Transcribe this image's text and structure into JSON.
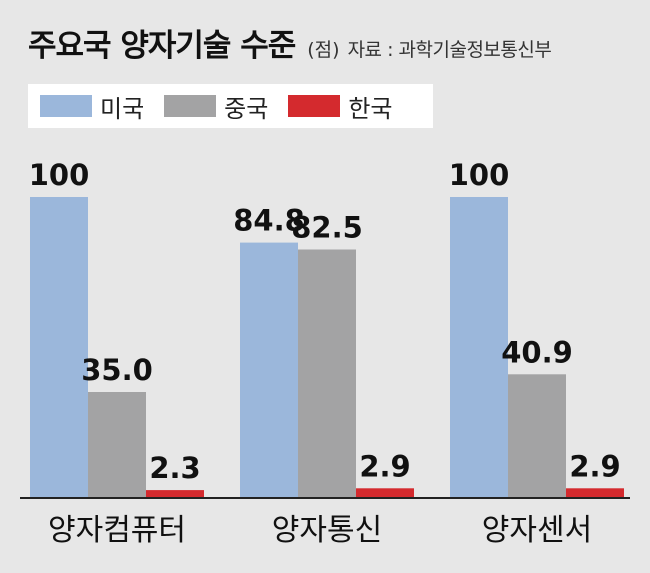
{
  "header": {
    "title": "주요국 양자기술 수준",
    "unit": "(점)",
    "source": "자료 : 과학기술정보통신부"
  },
  "colors": {
    "background": "#e7e7e7",
    "usa": "#9bb7db",
    "china": "#a3a3a4",
    "korea": "#d42a2e",
    "baseline": "#222222"
  },
  "chart_data": {
    "type": "bar",
    "categories": [
      "양자컴퓨터",
      "양자통신",
      "양자센서"
    ],
    "series": [
      {
        "name": "미국",
        "values": [
          100,
          84.8,
          100
        ],
        "labels": [
          "100",
          "84.8",
          "100"
        ]
      },
      {
        "name": "중국",
        "values": [
          35.0,
          82.5,
          40.9
        ],
        "labels": [
          "35.0",
          "82.5",
          "40.9"
        ]
      },
      {
        "name": "한국",
        "values": [
          2.3,
          2.9,
          2.9
        ],
        "labels": [
          "2.3",
          "2.9",
          "2.9"
        ]
      }
    ],
    "title": "주요국 양자기술 수준",
    "xlabel": "",
    "ylabel": "",
    "ylim": [
      0,
      100
    ],
    "grid": false,
    "legend": "top-left"
  }
}
